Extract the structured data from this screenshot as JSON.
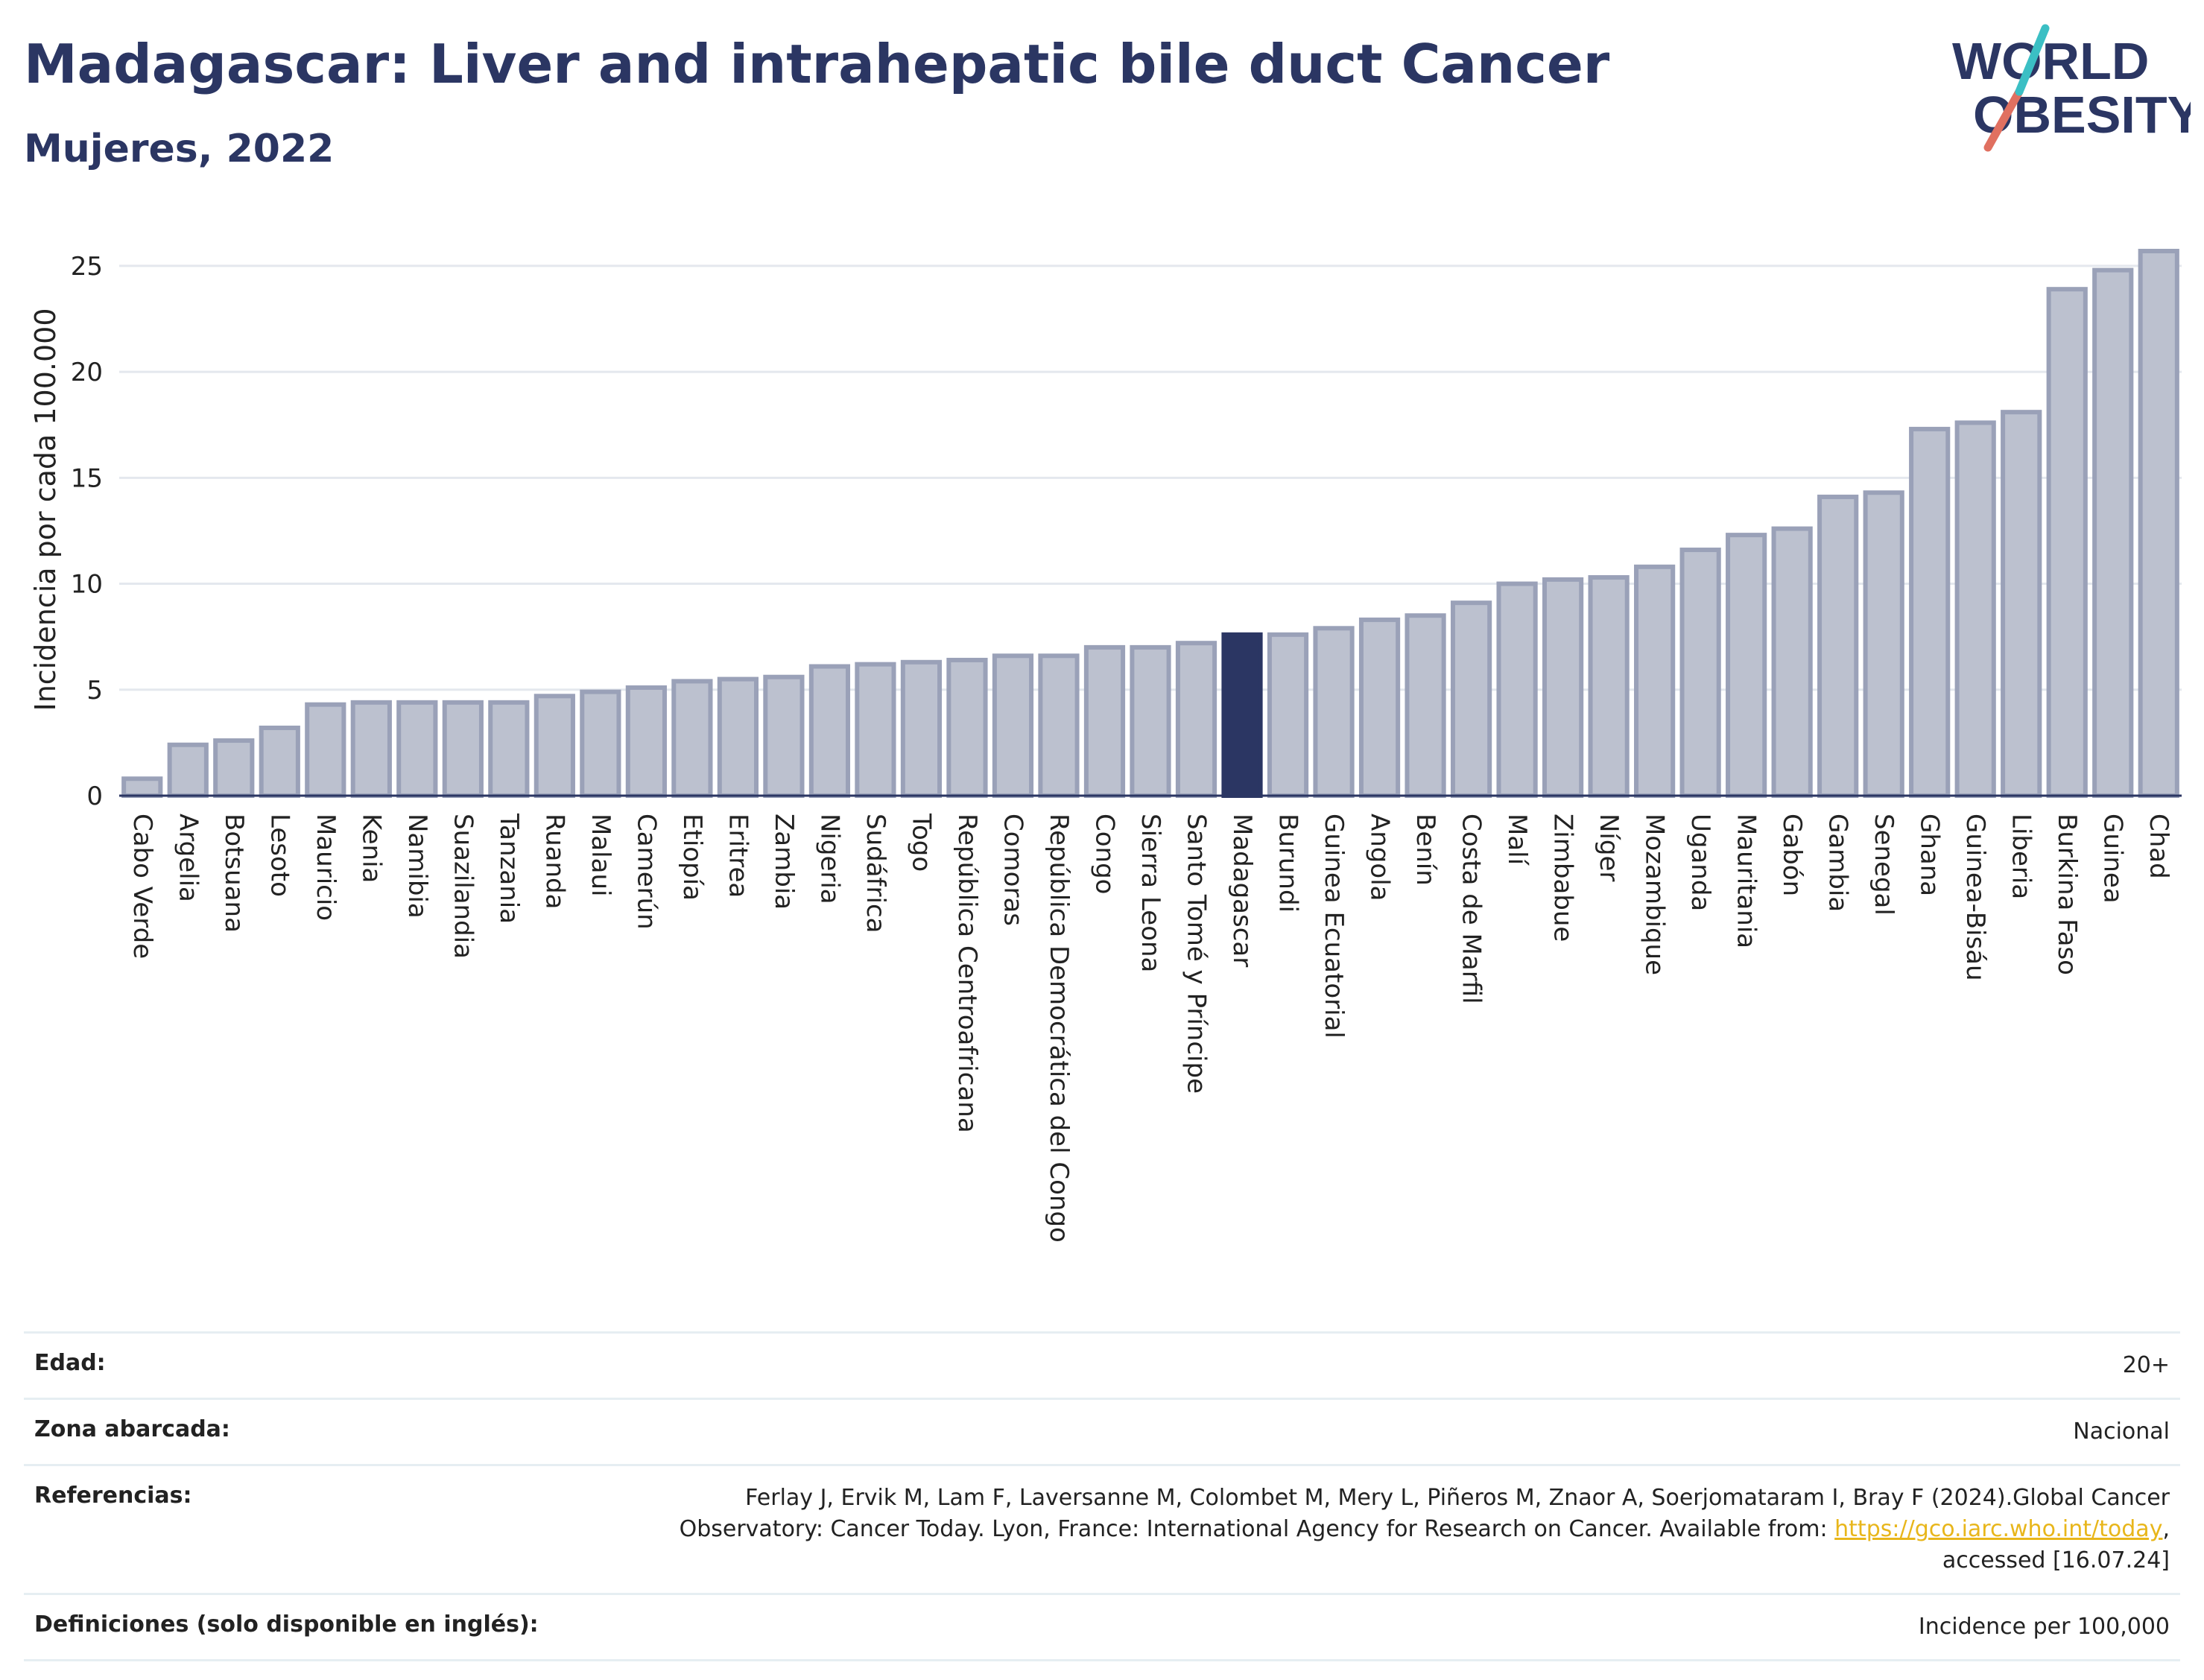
{
  "header": {
    "title": "Madagascar: Liver and intrahepatic bile duct Cancer",
    "subtitle": "Mujeres, 2022"
  },
  "logo": {
    "line1": "WORLD",
    "line2": "OBESITY",
    "colors": [
      "#2b3663",
      "#e07060",
      "#3bbfc4"
    ]
  },
  "chart_data": {
    "type": "bar",
    "ylabel": "Incidencia por cada 100.000",
    "ylim": [
      0,
      27
    ],
    "yticks": [
      0,
      5,
      10,
      15,
      20,
      25
    ],
    "grid": true,
    "highlight": "Madagascar",
    "colors": {
      "bar": "#bcc1cf",
      "bar_border": "#9aa1b8",
      "highlight": "#2b3663"
    },
    "categories": [
      "Cabo Verde",
      "Argelia",
      "Botsuana",
      "Lesoto",
      "Mauricio",
      "Kenia",
      "Namibia",
      "Suazilandia",
      "Tanzania",
      "Ruanda",
      "Malaui",
      "Camerún",
      "Etiopía",
      "Eritrea",
      "Zambia",
      "Nigeria",
      "Sudáfrica",
      "Togo",
      "República Centroafricana",
      "Comoras",
      "República Democrática del Congo",
      "Congo",
      "Sierra Leona",
      "Santo Tomé y Príncipe",
      "Madagascar",
      "Burundi",
      "Guinea Ecuatorial",
      "Angola",
      "Benín",
      "Costa de Marfil",
      "Malí",
      "Zimbabue",
      "Níger",
      "Mozambique",
      "Uganda",
      "Mauritania",
      "Gabón",
      "Gambia",
      "Senegal",
      "Ghana",
      "Guinea-Bisáu",
      "Liberia",
      "Burkina Faso",
      "Guinea",
      "Chad"
    ],
    "values": [
      0.8,
      2.4,
      2.6,
      3.2,
      4.3,
      4.4,
      4.4,
      4.4,
      4.4,
      4.7,
      4.9,
      5.1,
      5.4,
      5.5,
      5.6,
      6.1,
      6.2,
      6.3,
      6.4,
      6.6,
      6.6,
      7.0,
      7.0,
      7.2,
      7.6,
      7.6,
      7.9,
      8.3,
      8.5,
      9.1,
      10.0,
      10.2,
      10.3,
      10.8,
      11.6,
      12.3,
      12.6,
      14.1,
      14.3,
      17.3,
      17.6,
      18.1,
      23.9,
      24.8,
      25.7
    ]
  },
  "info": {
    "age_label": "Edad:",
    "age_value": "20+",
    "area_label": "Zona abarcada:",
    "area_value": "Nacional",
    "ref_label": "Referencias:",
    "ref_text1": "Ferlay J, Ervik M, Lam F, Laversanne M, Colombet M, Mery L, Piñeros M, Znaor A, Soerjomataram I, Bray F (2024).Global Cancer",
    "ref_text2": "Observatory: Cancer Today. Lyon, France: International Agency for Research on Cancer. Available from: ",
    "ref_link": "https://gco.iarc.who.int/today",
    "ref_text3": ",",
    "ref_text4": "accessed [16.07.24]",
    "def_label": "Definiciones (solo disponible en inglés):",
    "def_value": "Incidence per 100,000"
  }
}
